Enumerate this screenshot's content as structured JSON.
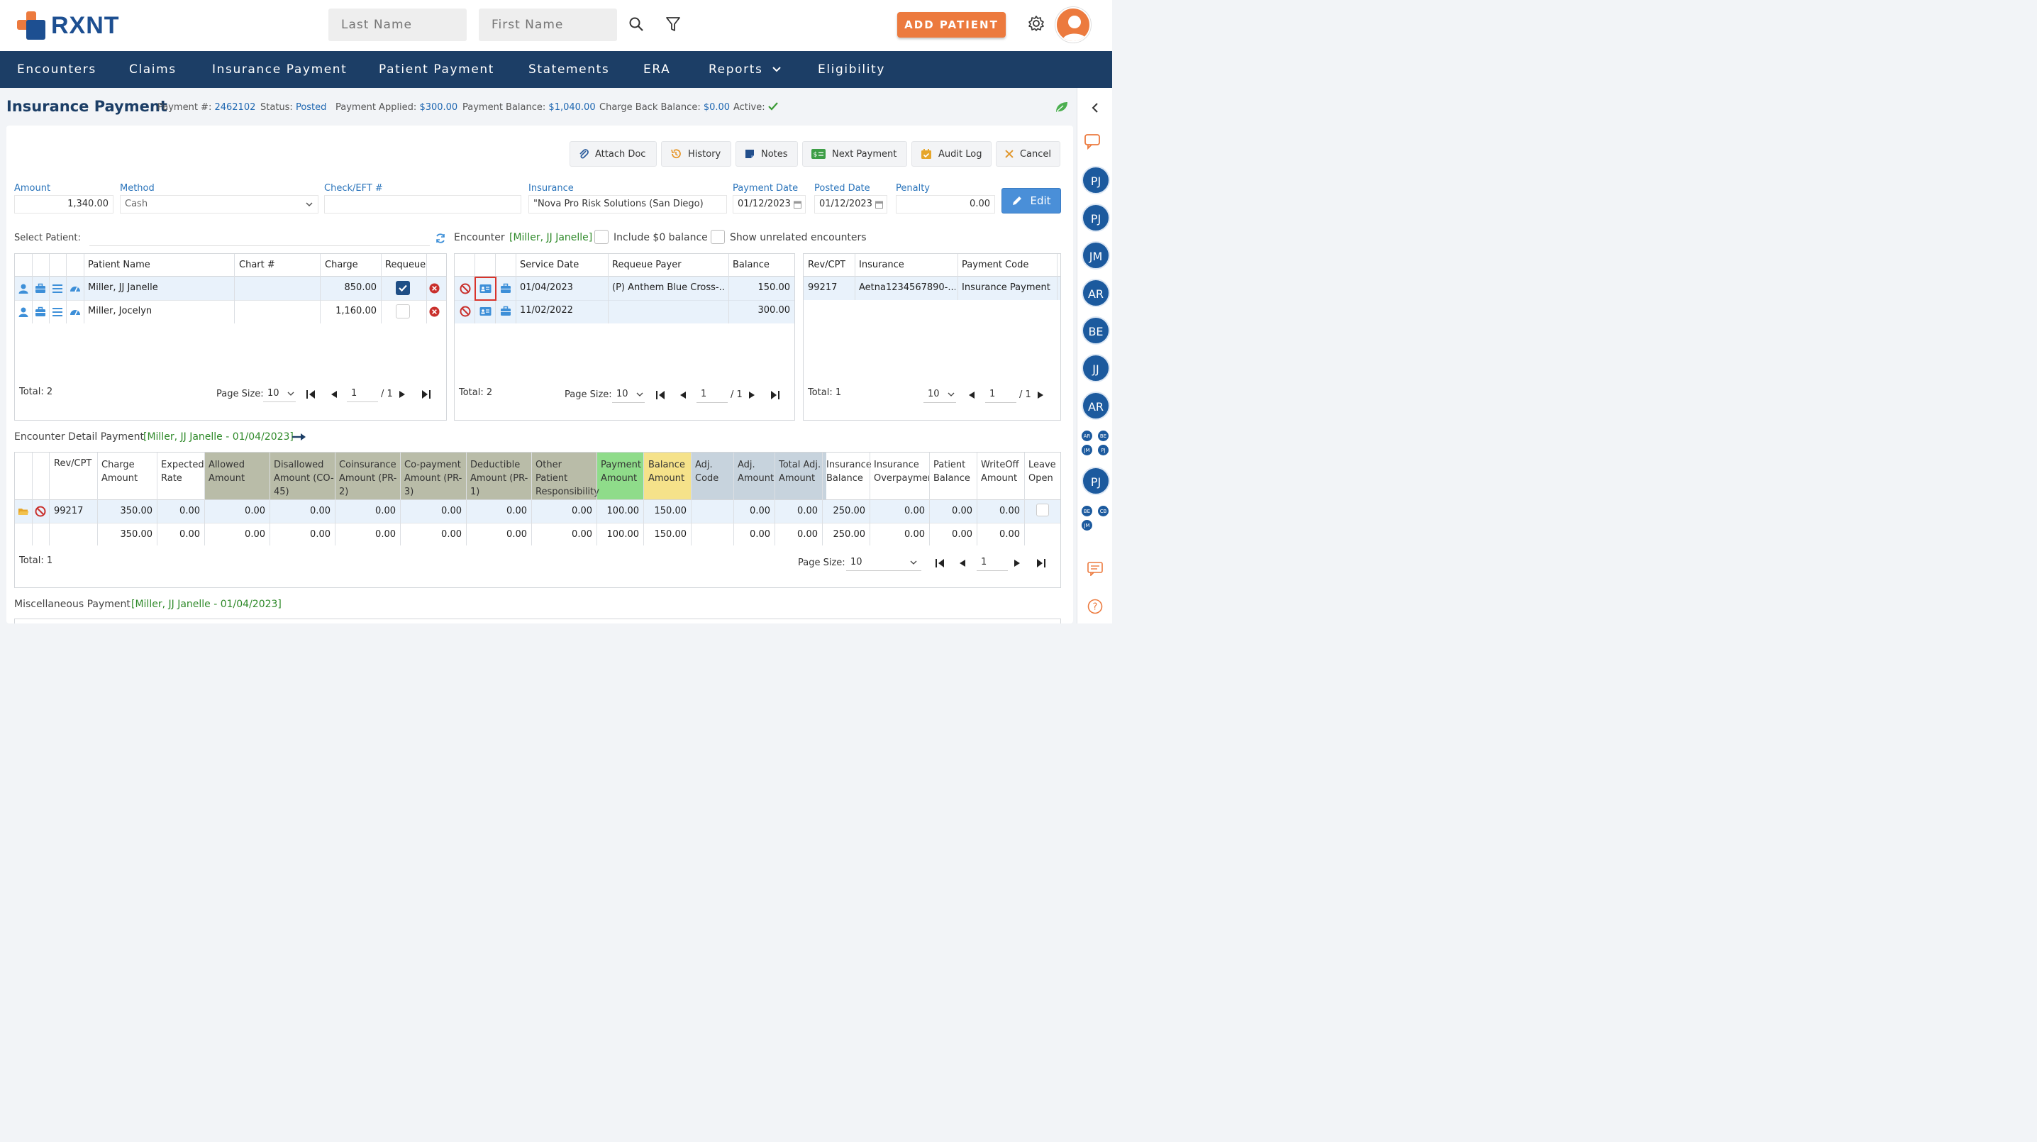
{
  "app": {
    "brand": "RXNT"
  },
  "search": {
    "last_name_placeholder": "Last Name",
    "first_name_placeholder": "First Name"
  },
  "header": {
    "add_patient_label": "ADD PATIENT"
  },
  "nav": {
    "items": [
      "Encounters",
      "Claims",
      "Insurance Payment",
      "Patient Payment",
      "Statements",
      "ERA",
      "Reports",
      "Eligibility"
    ]
  },
  "page": {
    "title": "Insurance Payment",
    "payment_no_label": "Payment #:",
    "payment_no": "2462102",
    "status_label": "Status:",
    "status": "Posted",
    "applied_label": "Payment Applied:",
    "applied": "$300.00",
    "balance_label": "Payment Balance:",
    "balance": "$1,040.00",
    "chargeback_label": "Charge Back Balance:",
    "chargeback": "$0.00",
    "active_label": "Active:"
  },
  "toolbar": {
    "attach": "Attach Doc",
    "history": "History",
    "notes": "Notes",
    "next": "Next Payment",
    "audit": "Audit Log",
    "cancel": "Cancel"
  },
  "form": {
    "amount_label": "Amount",
    "amount": "1,340.00",
    "method_label": "Method",
    "method": "Cash",
    "check_label": "Check/EFT #",
    "check": "",
    "insurance_label": "Insurance",
    "insurance": "\"Nova Pro Risk Solutions (San Diego)",
    "payment_date_label": "Payment Date",
    "payment_date": "01/12/2023",
    "posted_date_label": "Posted Date",
    "posted_date": "01/12/2023",
    "penalty_label": "Penalty",
    "penalty": "0.00",
    "edit": "Edit"
  },
  "select_patient": {
    "label": "Select Patient:"
  },
  "encounter_bar": {
    "label": "Encounter",
    "patient": "[Miller, JJ Janelle]",
    "include_zero": "Include $0 balance",
    "show_unrelated": "Show unrelated encounters"
  },
  "patients": {
    "headers": [
      "Patient Name",
      "Chart #",
      "Charge",
      "Requeue"
    ],
    "rows": [
      {
        "name": "Miller, JJ Janelle",
        "chart": "",
        "charge": "850.00",
        "requeue": true
      },
      {
        "name": "Miller, Jocelyn",
        "chart": "",
        "charge": "1,160.00",
        "requeue": false
      }
    ],
    "total": "Total: 2",
    "page_size_label": "Page Size:",
    "page_size": "10",
    "page": "1",
    "of": "/ 1"
  },
  "encounters": {
    "headers": [
      "Service Date",
      "Requeue Payer",
      "Balance"
    ],
    "rows": [
      {
        "date": "01/04/2023",
        "payer": "(P) Anthem Blue Cross-...",
        "balance": "150.00"
      },
      {
        "date": "11/02/2022",
        "payer": "",
        "balance": "300.00"
      }
    ],
    "total": "Total: 2",
    "page_size_label": "Page Size:",
    "page_size": "10",
    "page": "1",
    "of": "/ 1"
  },
  "charges": {
    "headers": [
      "Rev/CPT",
      "Insurance",
      "Payment Code"
    ],
    "rows": [
      {
        "cpt": "99217",
        "insurance": "Aetna1234567890-...",
        "code": "Insurance Payment"
      }
    ],
    "total": "Total: 1",
    "page_size": "10",
    "page": "1",
    "of": "/ 1"
  },
  "detail": {
    "label": "Encounter Detail Payment",
    "context": "[Miller, JJ Janelle - 01/04/2023]",
    "headers": [
      "Rev/CPT",
      "Charge Amount",
      "Expected Rate",
      "Allowed Amount",
      "Disallowed Amount (CO-45)",
      "Coinsurance Amount (PR-2)",
      "Co-payment Amount (PR-3)",
      "Deductible Amount (PR-1)",
      "Other Patient Responsibility",
      "Payment Amount",
      "Balance Amount",
      "Adj. Code",
      "Adj. Amount",
      "Total Adj. Amount",
      "Insurance Balance",
      "Insurance Overpaymen",
      "Patient Balance",
      "WriteOff Amount",
      "Leave Open"
    ],
    "row": [
      "99217",
      "350.00",
      "0.00",
      "0.00",
      "0.00",
      "0.00",
      "0.00",
      "0.00",
      "0.00",
      "100.00",
      "150.00",
      "",
      "0.00",
      "0.00",
      "250.00",
      "0.00",
      "0.00",
      "0.00",
      ""
    ],
    "totals": [
      "",
      "350.00",
      "0.00",
      "0.00",
      "0.00",
      "0.00",
      "0.00",
      "0.00",
      "0.00",
      "100.00",
      "150.00",
      "",
      "0.00",
      "0.00",
      "250.00",
      "0.00",
      "0.00",
      "0.00",
      ""
    ],
    "total": "Total: 1",
    "page_size_label": "Page Size:",
    "page_size": "10",
    "page": "1"
  },
  "misc": {
    "label": "Miscellaneous Payment",
    "context": "[Miller, JJ Janelle - 01/04/2023]"
  },
  "right_rail": {
    "avatars": [
      "PJ",
      "PJ",
      "JM",
      "AR",
      "BE",
      "JJ",
      "AR"
    ],
    "group1": [
      "AR",
      "BE",
      "JM",
      "PJ"
    ],
    "avatar_pj": "PJ",
    "group2": [
      "BE",
      "CB",
      "JM"
    ]
  },
  "colors": {
    "brand": "#1c3e66",
    "accent": "#ec7a3e",
    "link": "#1f67b1",
    "green": "#2f8a2a"
  }
}
